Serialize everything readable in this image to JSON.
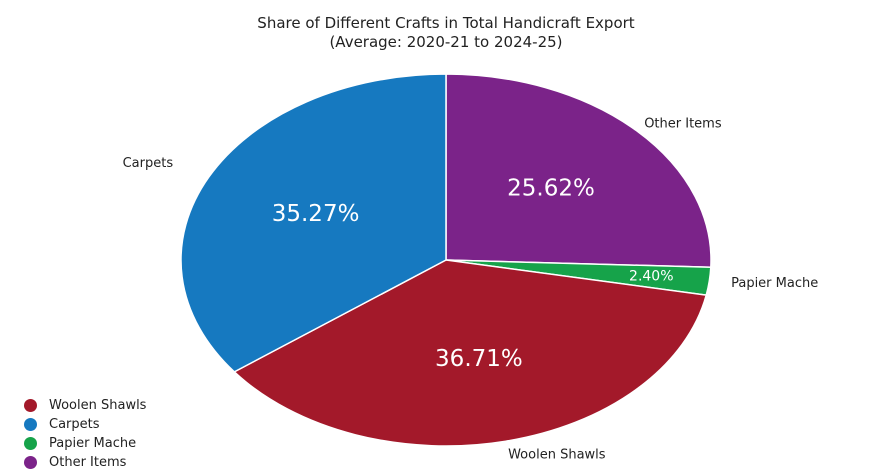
{
  "chart_data": {
    "type": "pie",
    "title": "Share of Different Crafts in Total Handicraft Export",
    "subtitle": "(Average: 2020-21 to 2024-25)",
    "categories": [
      "Woolen Shawls",
      "Carpets",
      "Papier Mache",
      "Other Items"
    ],
    "values": [
      36.71,
      35.27,
      2.4,
      25.62
    ],
    "value_labels": [
      "36.71%",
      "35.27%",
      "2.40%",
      "25.62%"
    ],
    "unit": "%",
    "colors": [
      "#a3192a",
      "#1679c0",
      "#16a34a",
      "#7b2389"
    ],
    "legend": {
      "position": "bottom-left",
      "entries": [
        "Woolen Shawls",
        "Carpets",
        "Papier Mache",
        "Other Items"
      ]
    }
  }
}
